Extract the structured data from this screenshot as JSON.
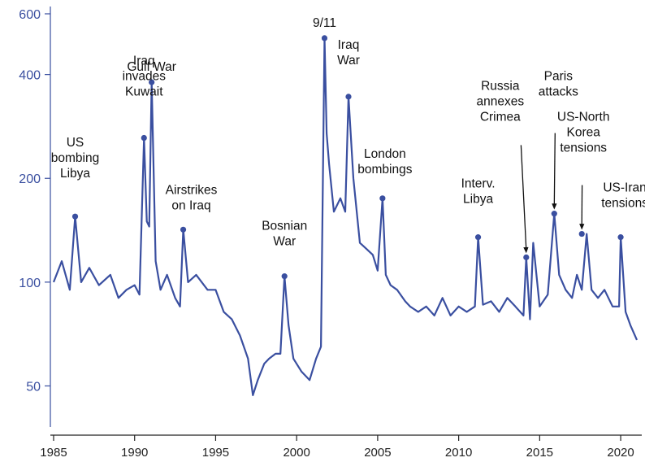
{
  "chart_data": {
    "type": "line",
    "title": "",
    "xlabel": "",
    "ylabel": "",
    "y_scale": "log",
    "xlim": [
      1984.8,
      2021.3
    ],
    "ylim": [
      38,
      630
    ],
    "x_ticks": [
      1985,
      1990,
      1995,
      2000,
      2005,
      2010,
      2015,
      2020
    ],
    "y_ticks": [
      50,
      100,
      200,
      400,
      600
    ],
    "grid": false,
    "legend": "none",
    "colors": {
      "line": "#3a4fa0",
      "axis_left": "#3a4fa0",
      "axis_bottom": "#222222",
      "text": "#111111"
    },
    "series": [
      {
        "x": [
          1985.0,
          1985.5,
          1986.0,
          1986.33,
          1986.7,
          1987.2,
          1987.8,
          1988.5,
          1989.0,
          1989.5,
          1990.0,
          1990.3,
          1990.58,
          1990.75,
          1990.9,
          1991.05,
          1991.3,
          1991.6,
          1992.0,
          1992.5,
          1992.8,
          1993.0,
          1993.3,
          1993.8,
          1994.5,
          1995.0,
          1995.5,
          1996.0,
          1996.5,
          1997.0,
          1997.3,
          1997.6,
          1998.0,
          1998.3,
          1998.7,
          1999.0,
          1999.25,
          1999.5,
          1999.8,
          2000.3,
          2000.8,
          2001.2,
          2001.5,
          2001.72,
          2001.85,
          2002.0,
          2002.3,
          2002.7,
          2003.0,
          2003.2,
          2003.5,
          2003.9,
          2004.3,
          2004.7,
          2005.0,
          2005.3,
          2005.5,
          2005.8,
          2006.2,
          2006.7,
          2007.0,
          2007.5,
          2008.0,
          2008.5,
          2009.0,
          2009.5,
          2010.0,
          2010.5,
          2011.0,
          2011.2,
          2011.5,
          2012.0,
          2012.5,
          2013.0,
          2013.5,
          2014.0,
          2014.17,
          2014.4,
          2014.6,
          2015.0,
          2015.5,
          2015.9,
          2016.2,
          2016.6,
          2017.0,
          2017.3,
          2017.6,
          2017.9,
          2018.2,
          2018.6,
          2019.0,
          2019.5,
          2019.9,
          2020.0,
          2020.3,
          2020.6,
          2021.0
        ],
        "values": [
          100,
          115,
          95,
          155,
          100,
          110,
          98,
          105,
          90,
          95,
          98,
          92,
          262,
          150,
          145,
          380,
          115,
          95,
          105,
          90,
          85,
          142,
          100,
          105,
          95,
          95,
          82,
          78,
          70,
          60,
          47,
          52,
          58,
          60,
          62,
          62,
          104,
          75,
          60,
          55,
          52,
          60,
          65,
          510,
          270,
          220,
          160,
          175,
          160,
          345,
          200,
          130,
          125,
          120,
          108,
          175,
          105,
          98,
          95,
          88,
          85,
          82,
          85,
          80,
          90,
          80,
          85,
          82,
          85,
          135,
          86,
          88,
          82,
          90,
          85,
          80,
          118,
          78,
          130,
          85,
          92,
          158,
          105,
          95,
          90,
          105,
          95,
          138,
          95,
          90,
          95,
          85,
          85,
          135,
          82,
          75,
          68
        ]
      }
    ],
    "annotations": [
      {
        "lines": [
          "US",
          "bombing",
          "Libya"
        ],
        "x": 1986.33,
        "y": 155
      },
      {
        "lines": [
          "Iraq",
          "invades",
          "Kuwait"
        ],
        "x": 1990.58,
        "y": 262
      },
      {
        "lines": [
          "Gulf War"
        ],
        "x": 1991.05,
        "y": 380
      },
      {
        "lines": [
          "Airstrikes",
          "on Iraq"
        ],
        "x": 1993.0,
        "y": 142
      },
      {
        "lines": [
          "Bosnian",
          "War"
        ],
        "x": 1999.25,
        "y": 104
      },
      {
        "lines": [
          "9/11"
        ],
        "x": 2001.72,
        "y": 510
      },
      {
        "lines": [
          "Iraq",
          "War"
        ],
        "x": 2003.2,
        "y": 345
      },
      {
        "lines": [
          "London",
          "bombings"
        ],
        "x": 2005.3,
        "y": 175
      },
      {
        "lines": [
          "Interv.",
          "Libya"
        ],
        "x": 2011.2,
        "y": 135
      },
      {
        "lines": [
          "Russia",
          "annexes",
          "Crimea"
        ],
        "x": 2014.17,
        "y": 118
      },
      {
        "lines": [
          "Paris",
          "attacks"
        ],
        "x": 2015.9,
        "y": 158
      },
      {
        "lines": [
          "US-North",
          "Korea",
          "tensions"
        ],
        "x": 2017.6,
        "y": 138
      },
      {
        "lines": [
          "US-Iran",
          "tensions"
        ],
        "x": 2020.0,
        "y": 135
      }
    ]
  }
}
